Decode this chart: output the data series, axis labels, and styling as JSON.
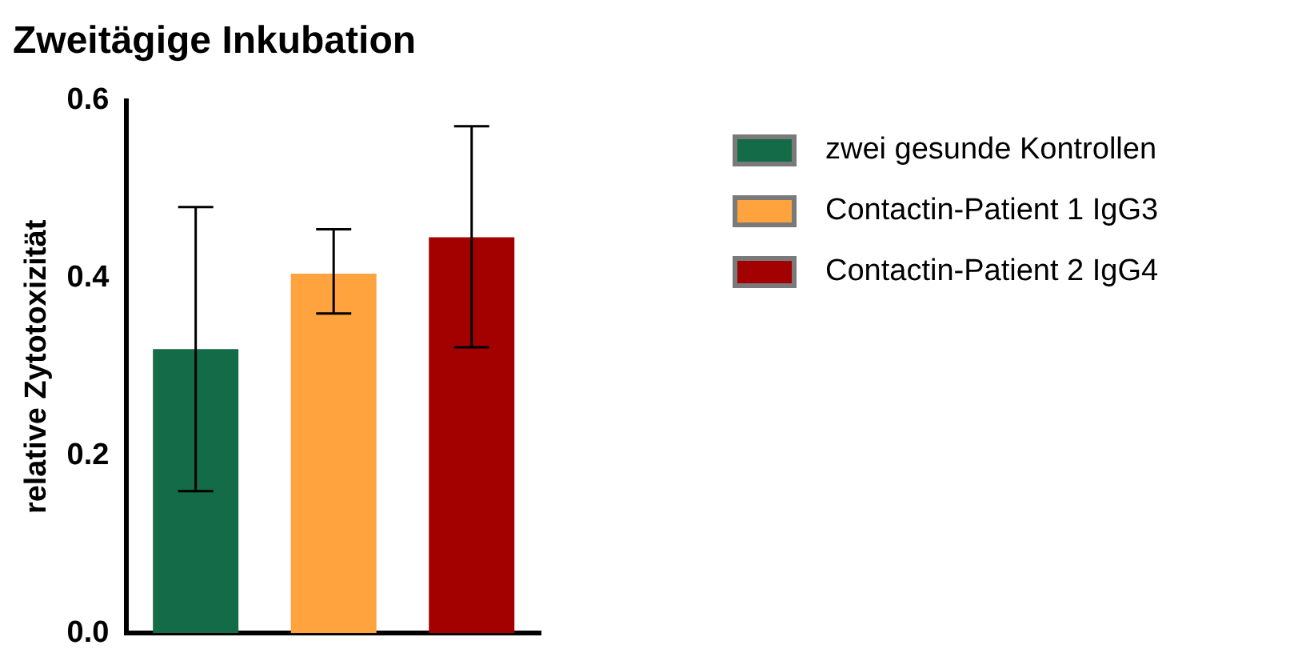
{
  "chart_data": {
    "type": "bar",
    "title": "Zweitägige Inkubation",
    "ylabel": "relative Zytotoxizität",
    "categories": [
      null,
      null,
      null
    ],
    "series": [
      {
        "name": "zwei gesunde Kontrollen",
        "color": "#136b47",
        "values": [
          0.32,
          null,
          null
        ],
        "errors": [
          [
            0.16,
            0.48
          ],
          null,
          null
        ]
      },
      {
        "name": "Contactin-Patient 1 IgG3",
        "color": "#ffa33f",
        "values": [
          null,
          0.405,
          null
        ],
        "errors": [
          null,
          [
            0.36,
            0.455
          ],
          null
        ]
      },
      {
        "name": "Contactin-Patient 2 IgG4",
        "color": "#a30000",
        "values": [
          null,
          null,
          0.446
        ],
        "errors": [
          null,
          null,
          [
            0.322,
            0.571
          ]
        ]
      }
    ],
    "ylim": [
      0,
      0.6
    ],
    "yticks": [
      {
        "value": 0,
        "label": "0.0"
      },
      {
        "value": 0.2,
        "label": "0.2"
      },
      {
        "value": 0.4,
        "label": "0.4"
      },
      {
        "value": 0.6,
        "label": "0.6"
      }
    ],
    "grid": false,
    "legend": "right"
  }
}
